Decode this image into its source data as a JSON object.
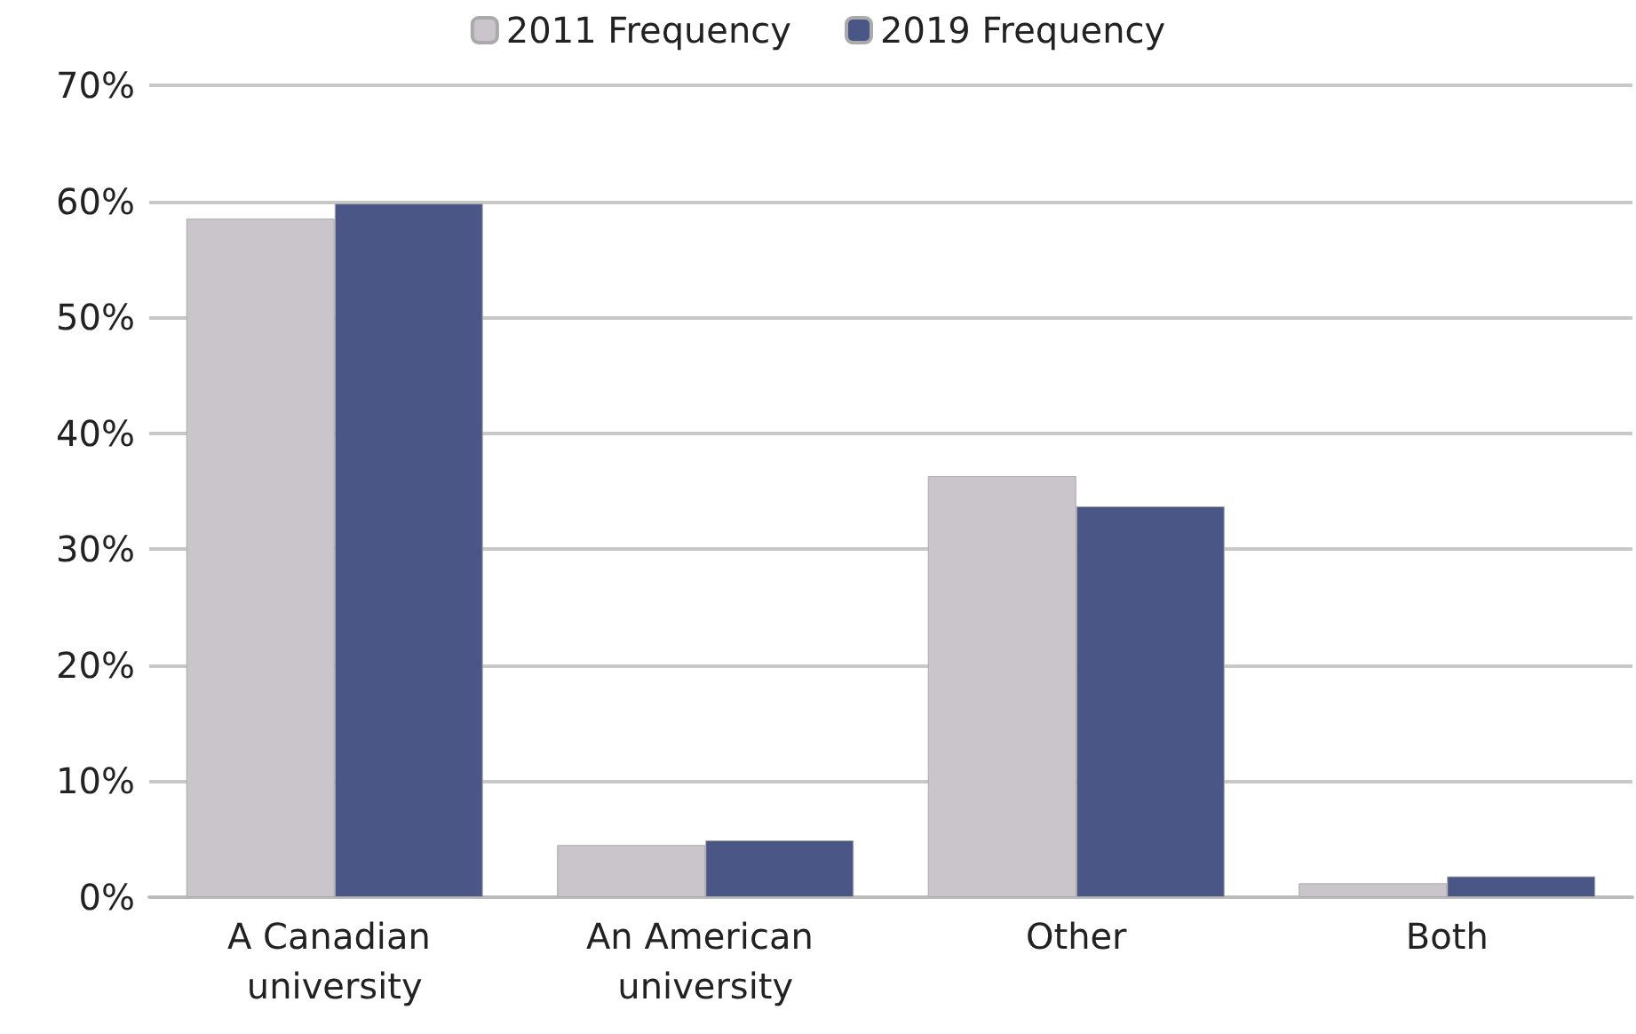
{
  "chart_data": {
    "type": "bar",
    "categories": [
      "A Canadian university",
      "An American university",
      "Other",
      "Both"
    ],
    "series": [
      {
        "name": "2011 Frequency",
        "color": "#c9c5ca",
        "values": [
          58.5,
          4.5,
          36.3,
          1.2
        ]
      },
      {
        "name": "2019 Frequency",
        "color": "#4a5686",
        "values": [
          59.8,
          4.9,
          33.7,
          1.8
        ]
      }
    ],
    "ylim": [
      0,
      70
    ],
    "yticks": [
      {
        "value": 0,
        "label": "0%"
      },
      {
        "value": 10,
        "label": "10%"
      },
      {
        "value": 20,
        "label": "20%"
      },
      {
        "value": 30,
        "label": "30%"
      },
      {
        "value": 40,
        "label": "40%"
      },
      {
        "value": 50,
        "label": "50%"
      },
      {
        "value": 60,
        "label": "60%"
      },
      {
        "value": 70,
        "label": "70%"
      }
    ],
    "grid": "y",
    "legend": "top"
  }
}
